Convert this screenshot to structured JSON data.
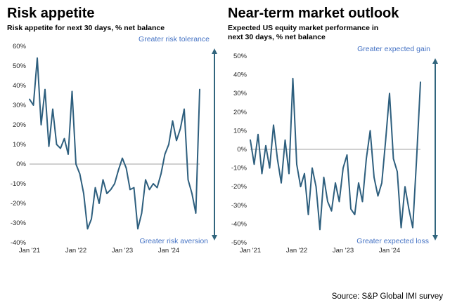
{
  "source": "Source: S&P Global IMI survey",
  "line_color": "#2e5f7e",
  "arrow_color": "#31657d",
  "annotation_color": "#4472c4",
  "chart_data": [
    {
      "type": "line",
      "title": "Risk appetite",
      "subtitle": "Risk appetite for next 30 days, % net balance",
      "annotation_top": "Greater risk tolerance",
      "annotation_bottom": "Greater risk aversion",
      "x_tick_labels": [
        "Jan '21",
        "Jan '22",
        "Jan '23",
        "Jan '24"
      ],
      "x_tick_indices": [
        0,
        12,
        24,
        36
      ],
      "x_start": "Jan 2021",
      "x_freq": "monthly",
      "ylim": [
        -40,
        60
      ],
      "ytick_step": 10,
      "values": [
        33,
        30,
        54,
        20,
        38,
        9,
        28,
        10,
        8,
        13,
        5,
        37,
        0,
        -5,
        -15,
        -33,
        -28,
        -12,
        -20,
        -8,
        -15,
        -13,
        -10,
        -3,
        3,
        -2,
        -13,
        -12,
        -33,
        -25,
        -8,
        -13,
        -10,
        -12,
        -5,
        5,
        10,
        22,
        12,
        18,
        28,
        -8,
        -15,
        -25,
        38
      ]
    },
    {
      "type": "line",
      "title": "Near-term market outlook",
      "subtitle": "Expected US equity market performance in next 30 days, % net balance",
      "annotation_top": "Greater expected gain",
      "annotation_bottom": "Greater  expected loss",
      "x_tick_labels": [
        "Jan '21",
        "Jan '22",
        "Jan '23",
        "Jan '24"
      ],
      "x_tick_indices": [
        0,
        12,
        24,
        36
      ],
      "x_start": "Jan 2021",
      "x_freq": "monthly",
      "ylim": [
        -50,
        50
      ],
      "ytick_step": 10,
      "values": [
        5,
        -8,
        8,
        -13,
        2,
        -10,
        13,
        -5,
        -18,
        5,
        -13,
        38,
        -8,
        -20,
        -13,
        -35,
        -10,
        -20,
        -43,
        -15,
        -28,
        -33,
        -18,
        -28,
        -10,
        -3,
        -32,
        -35,
        -18,
        -28,
        -5,
        10,
        -15,
        -25,
        -18,
        5,
        30,
        -5,
        -12,
        -42,
        -20,
        -32,
        -42,
        -5,
        36
      ]
    }
  ]
}
